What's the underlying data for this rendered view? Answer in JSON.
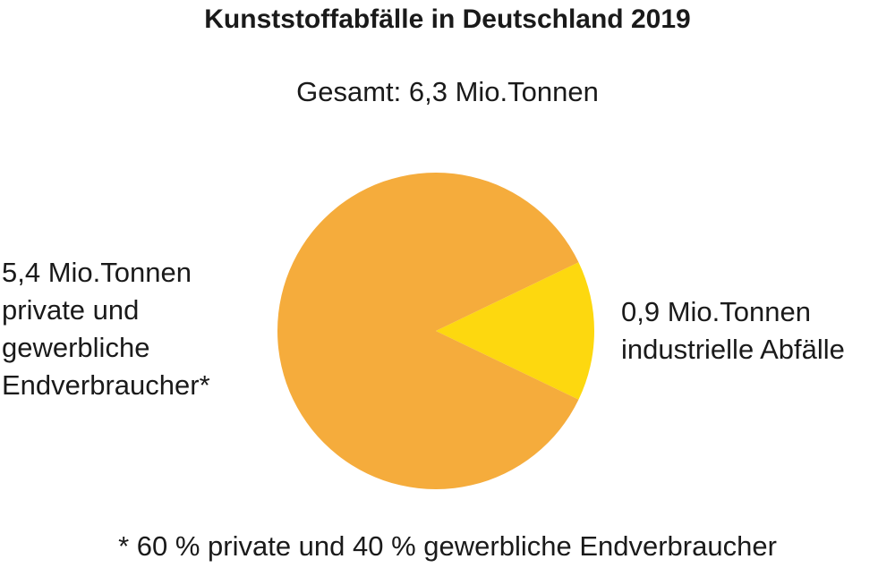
{
  "chart_data": {
    "type": "pie",
    "title": "Kunststoffabfälle in Deutschland 2019",
    "subtitle": "Gesamt: 6,3 Mio.Tonnen",
    "unit": "Mio.Tonnen",
    "slices": [
      {
        "value": 5.4,
        "label_lines": [
          "5,4 Mio.Tonnen",
          "private und",
          "gewerbliche",
          "Endverbraucher*"
        ],
        "color": "#F5AC3C"
      },
      {
        "value": 0.9,
        "label_lines": [
          "0,9 Mio.Tonnen",
          "industrielle Abfälle"
        ],
        "color": "#FDD80F"
      }
    ],
    "footnote": "* 60 % private und 40 % gewerbliche Endverbraucher"
  }
}
